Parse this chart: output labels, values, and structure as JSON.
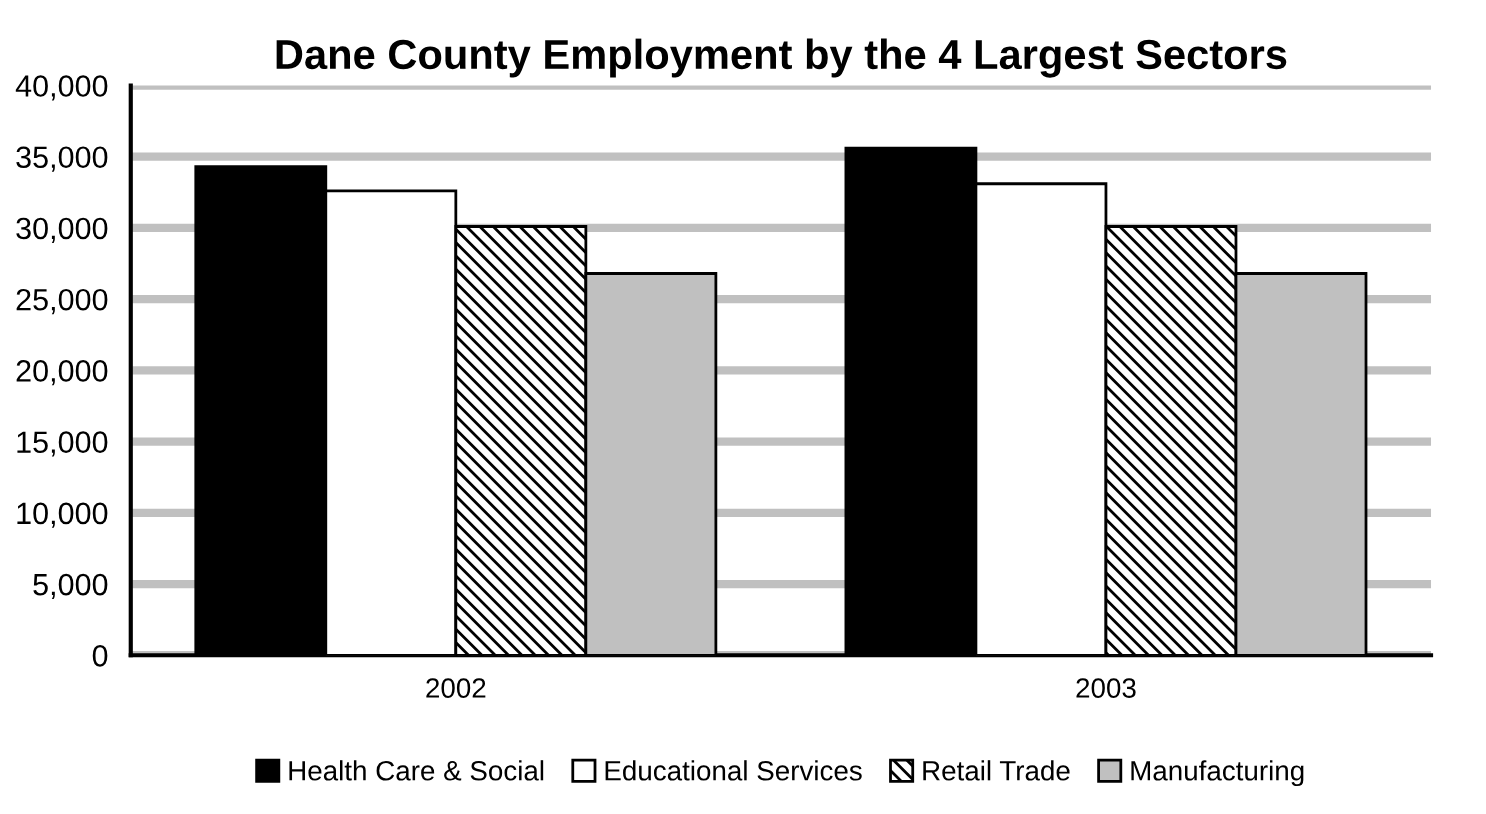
{
  "chart_data": {
    "type": "bar",
    "title": "Dane County Employment by the 4 Largest Sectors",
    "categories": [
      "2002",
      "2003"
    ],
    "series": [
      {
        "name": "Health Care & Social",
        "color": "#000000",
        "values": [
          34300,
          35600
        ]
      },
      {
        "name": "Educational Services",
        "color": "#ffffff",
        "values": [
          32600,
          33100
        ]
      },
      {
        "name": "Retail Trade",
        "color": "#000000",
        "values": [
          30100,
          30100
        ]
      },
      {
        "name": "Manufacturing",
        "color": "#c0c0c0",
        "values": [
          26800,
          26800
        ]
      }
    ],
    "ylim": [
      0,
      40000
    ],
    "yticks": [
      {
        "value": 0,
        "label": "0"
      },
      {
        "value": 5000,
        "label": "5,000"
      },
      {
        "value": 10000,
        "label": "10,000"
      },
      {
        "value": 15000,
        "label": "15,000"
      },
      {
        "value": 20000,
        "label": "20,000"
      },
      {
        "value": 25000,
        "label": "25,000"
      },
      {
        "value": 30000,
        "label": "30,000"
      },
      {
        "value": 35000,
        "label": "35,000"
      },
      {
        "value": 40000,
        "label": "40,000"
      }
    ],
    "grid": "y",
    "legend": "bottom"
  }
}
